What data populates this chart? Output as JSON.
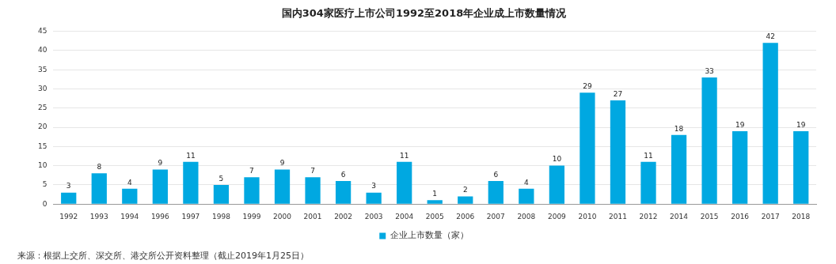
{
  "chart_data": {
    "type": "bar",
    "title": "国内304家医疗上市公司1992至2018年企业成上市数量情况",
    "categories": [
      "1992",
      "1993",
      "1994",
      "1996",
      "1997",
      "1998",
      "1999",
      "2000",
      "2001",
      "2002",
      "2003",
      "2004",
      "2005",
      "2006",
      "2007",
      "2008",
      "2009",
      "2010",
      "2011",
      "2012",
      "2014",
      "2015",
      "2016",
      "2017",
      "2018"
    ],
    "series": [
      {
        "name": "企业上市数量（家）",
        "color": "#00a8e1",
        "values": [
          3,
          8,
          4,
          9,
          11,
          5,
          7,
          9,
          7,
          6,
          3,
          11,
          1,
          2,
          6,
          4,
          10,
          29,
          27,
          11,
          18,
          33,
          19,
          42,
          19
        ]
      }
    ],
    "ylim": [
      0,
      45
    ],
    "yticks": [
      0,
      5,
      10,
      15,
      20,
      25,
      30,
      35,
      40,
      45
    ],
    "grid": "y",
    "legend": "bottom",
    "data_labels": true,
    "annotations": [
      "来源：根据上交所、深交所、港交所公开资料整理（截止2019年1月25日）"
    ]
  }
}
